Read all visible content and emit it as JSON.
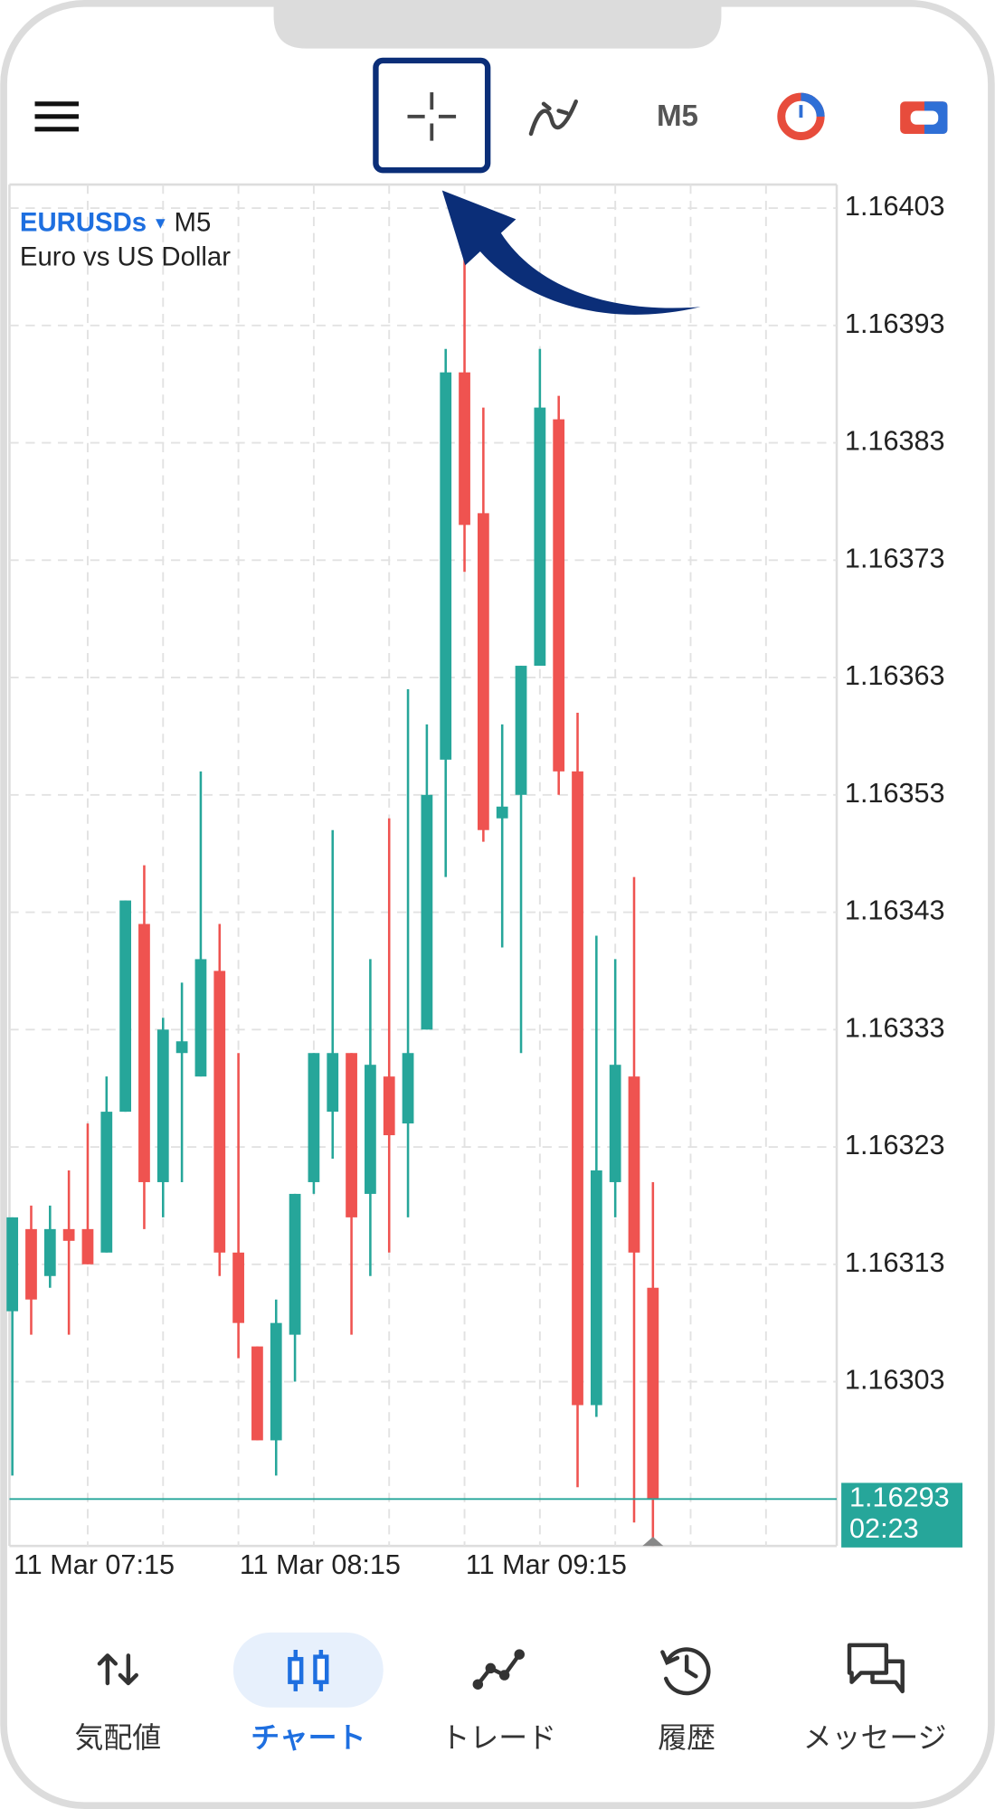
{
  "toolbar": {
    "timeframe": "M5"
  },
  "chart_data": {
    "type": "candlestick",
    "symbol": "EURUSDs",
    "timeframe": "M5",
    "description": "Euro vs US Dollar",
    "categories": [
      "11 Mar 07:15",
      null,
      null,
      null,
      null,
      null,
      null,
      null,
      null,
      null,
      null,
      null,
      "11 Mar 08:15",
      null,
      null,
      null,
      null,
      null,
      null,
      null,
      null,
      null,
      null,
      null,
      "11 Mar 09:15",
      null,
      null,
      null,
      null,
      null,
      null,
      null,
      null,
      null,
      null
    ],
    "open": [
      1.16309,
      1.16316,
      1.16312,
      1.16316,
      1.16316,
      1.16314,
      1.16326,
      1.16342,
      1.1632,
      1.16331,
      1.16329,
      1.16338,
      1.16314,
      1.16306,
      1.16298,
      1.16307,
      1.1632,
      1.16326,
      1.16331,
      1.16319,
      1.16329,
      1.16325,
      1.16333,
      1.16356,
      1.16389,
      1.16377,
      1.16351,
      1.16353,
      1.16364,
      1.16385,
      1.16355,
      1.16301,
      1.1632,
      1.16329,
      1.16311
    ],
    "high": [
      1.16317,
      1.16318,
      1.16318,
      1.16321,
      1.16325,
      1.16329,
      1.16344,
      1.16347,
      1.16334,
      1.16337,
      1.16355,
      1.16342,
      1.16331,
      1.16306,
      1.1631,
      1.16319,
      1.16331,
      1.1635,
      1.16331,
      1.16339,
      1.16351,
      1.16362,
      1.16359,
      1.16391,
      1.16399,
      1.16386,
      1.16359,
      1.16364,
      1.16391,
      1.16387,
      1.1636,
      1.16341,
      1.16339,
      1.16346,
      1.1632
    ],
    "low": [
      1.16295,
      1.16307,
      1.16311,
      1.16307,
      1.16313,
      1.16314,
      1.16326,
      1.16316,
      1.16317,
      1.1632,
      1.16329,
      1.16312,
      1.16305,
      1.16298,
      1.16295,
      1.16303,
      1.16319,
      1.16322,
      1.16307,
      1.16312,
      1.16314,
      1.16317,
      1.16333,
      1.16346,
      1.16372,
      1.16349,
      1.1634,
      1.16331,
      1.16364,
      1.16353,
      1.16294,
      1.163,
      1.16317,
      1.16291,
      1.16289
    ],
    "close": [
      1.16317,
      1.1631,
      1.16316,
      1.16315,
      1.16313,
      1.16326,
      1.16344,
      1.1632,
      1.16333,
      1.16332,
      1.16339,
      1.16314,
      1.16308,
      1.16298,
      1.16308,
      1.16319,
      1.16331,
      1.16331,
      1.16317,
      1.1633,
      1.16324,
      1.16331,
      1.16353,
      1.16389,
      1.16376,
      1.1635,
      1.16352,
      1.16364,
      1.16386,
      1.16355,
      1.16301,
      1.16321,
      1.1633,
      1.16314,
      1.16293
    ],
    "up_color": "#26a69a",
    "down_color": "#ef5350",
    "ylim": [
      1.16289,
      1.16405
    ],
    "yticks": [
      1.16303,
      1.16313,
      1.16323,
      1.16333,
      1.16343,
      1.16353,
      1.16363,
      1.16373,
      1.16383,
      1.16393,
      1.16403
    ],
    "grid": true,
    "last_price": 1.16293,
    "countdown": "02:23"
  },
  "nav": {
    "items": [
      {
        "label": "気配値"
      },
      {
        "label": "チャート"
      },
      {
        "label": "トレード"
      },
      {
        "label": "履歴"
      },
      {
        "label": "メッセージ"
      }
    ]
  }
}
